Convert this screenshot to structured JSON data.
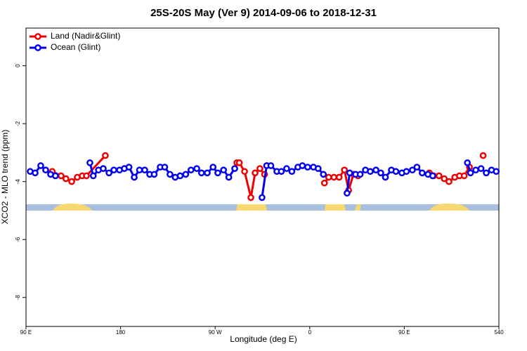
{
  "chart_data": {
    "type": "line",
    "title": "25S-20S May (Ver 9)   2014-09-06 to 2018-12-31",
    "xlabel": "Longitude (deg E)",
    "ylabel": "XCO2 - MLO trend (ppm)",
    "xlim": [
      90,
      540
    ],
    "xticks": [
      {
        "value": 90,
        "label": "90 E"
      },
      180,
      {
        "value": 270,
        "label": "90 W"
      },
      {
        "value": 360,
        "label": "0"
      },
      {
        "value": 450,
        "label": "90 E"
      },
      540
    ],
    "ylim": [
      -9.0,
      1.3
    ],
    "yticks": [
      0,
      -2,
      -4,
      -6,
      -8
    ],
    "legend": "top-left",
    "series": [
      {
        "name": "Land (Nadir&Glint)",
        "color": "#ee0000",
        "x": [
          115,
          123.4,
          128,
          133.5,
          138.8,
          143.5,
          147.5,
          165.5,
          null,
          290.6,
          293,
          298,
          304,
          308,
          312.6,
          317,
          null,
          374,
          378,
          383,
          388,
          393,
          397,
          401.6,
          406,
          null,
          473.8,
          477.8,
          483,
          488,
          492.5,
          498,
          502.5,
          507,
          512,
          null,
          525
        ],
        "values": [
          -3.65,
          -3.8,
          -3.9,
          -4.0,
          -3.85,
          -3.8,
          -3.8,
          -3.1,
          null,
          -3.35,
          -3.35,
          -3.65,
          -4.55,
          -3.7,
          -3.55,
          -3.75,
          null,
          -4.05,
          -3.85,
          -3.85,
          -3.85,
          -3.6,
          -4.3,
          -3.75,
          -3.8,
          null,
          -3.7,
          -3.8,
          -3.8,
          -3.9,
          -4.0,
          -3.85,
          -3.8,
          -3.8,
          -3.5,
          null,
          -3.1
        ]
      },
      {
        "name": "Ocean (Glint)",
        "color": "#0000ee",
        "x": [
          94,
          98.7,
          104,
          108.7,
          113.4,
          118,
          null,
          150.8,
          154,
          159,
          163.5,
          169,
          173.6,
          179,
          183.6,
          188,
          193,
          198,
          203,
          207.7,
          212,
          217.7,
          222,
          227,
          232,
          236.7,
          242,
          247,
          252.5,
          257,
          262.5,
          268,
          272.5,
          278,
          283,
          288.6,
          null,
          314.6,
          319,
          323,
          328.7,
          333,
          338,
          343,
          348.7,
          353,
          358,
          363.5,
          368,
          373,
          null,
          395.5,
          398,
          403.6,
          408,
          413,
          417.6,
          423,
          427.6,
          432,
          437.7,
          442,
          447.7,
          452,
          457.7,
          462,
          467,
          472.5,
          477,
          null,
          510,
          513,
          518,
          523,
          528,
          533,
          537.5
        ],
        "values": [
          -3.65,
          -3.7,
          -3.45,
          -3.6,
          -3.75,
          -3.8,
          null,
          -3.35,
          -3.8,
          -3.6,
          -3.55,
          -3.7,
          -3.6,
          -3.6,
          -3.55,
          -3.5,
          -3.85,
          -3.6,
          -3.6,
          -3.75,
          -3.75,
          -3.5,
          -3.5,
          -3.75,
          -3.85,
          -3.8,
          -3.75,
          -3.6,
          -3.55,
          -3.7,
          -3.7,
          -3.5,
          -3.7,
          -3.6,
          -3.85,
          -3.55,
          null,
          -4.55,
          -3.45,
          -3.45,
          -3.65,
          -3.65,
          -3.55,
          -3.65,
          -3.5,
          -3.45,
          -3.5,
          -3.5,
          -3.55,
          -3.75,
          null,
          -4.4,
          -3.7,
          -3.75,
          -3.75,
          -3.6,
          -3.65,
          -3.6,
          -3.7,
          -3.85,
          -3.6,
          -3.65,
          -3.7,
          -3.65,
          -3.6,
          -3.5,
          -3.7,
          -3.75,
          -3.8,
          null,
          -3.35,
          -3.7,
          -3.6,
          -3.55,
          -3.7,
          -3.6,
          -3.65
        ]
      }
    ]
  }
}
